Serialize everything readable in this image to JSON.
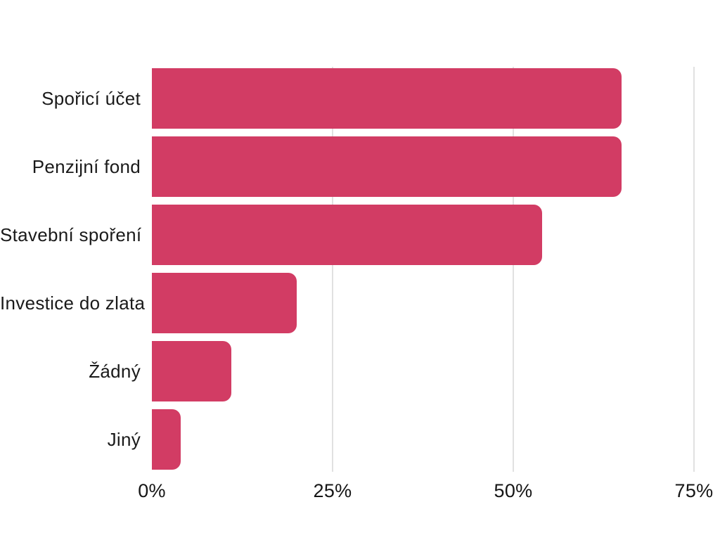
{
  "chart_data": {
    "type": "bar",
    "orientation": "horizontal",
    "title": "",
    "xlabel": "",
    "ylabel": "",
    "categories": [
      "Spořicí účet",
      "Penzijní fond",
      "Stavební spoření",
      "Investice do zlata",
      "Žádný",
      "Jiný"
    ],
    "values": [
      65,
      65,
      54,
      20,
      11,
      4
    ],
    "unit": "%",
    "x_ticks": [
      {
        "value": 0,
        "label": "0%"
      },
      {
        "value": 25,
        "label": "25%"
      },
      {
        "value": 50,
        "label": "50%"
      },
      {
        "value": 75,
        "label": "75%"
      }
    ],
    "xlim": [
      0,
      78
    ],
    "grid": "vertical-gridlines-at-25-50-75",
    "legend": "none",
    "colors": {
      "bar": "#d23c64",
      "gridline": "#e1e1e1",
      "text": "#1a1a1a",
      "background": "#ffffff"
    }
  }
}
